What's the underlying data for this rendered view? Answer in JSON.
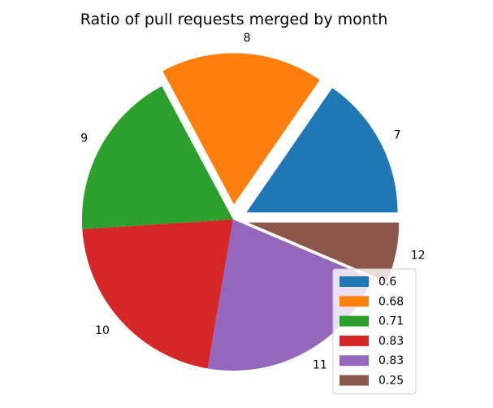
{
  "chart_data": {
    "type": "pie",
    "title": "Ratio of pull requests merged by month",
    "start_angle_deg": 0,
    "direction": "counterclockwise",
    "slices": [
      {
        "label": "7",
        "value": 0.6,
        "legend": "0.6",
        "color": "#1f77b4",
        "explode": 0.1
      },
      {
        "label": "8",
        "value": 0.68,
        "legend": "0.68",
        "color": "#ff7f0e",
        "explode": 0.1
      },
      {
        "label": "9",
        "value": 0.71,
        "legend": "0.71",
        "color": "#2ca02c",
        "explode": 0.0
      },
      {
        "label": "10",
        "value": 0.83,
        "legend": "0.83",
        "color": "#d62728",
        "explode": 0.0
      },
      {
        "label": "11",
        "value": 0.83,
        "legend": "0.83",
        "color": "#9467bd",
        "explode": 0.0
      },
      {
        "label": "12",
        "value": 0.25,
        "legend": "0.25",
        "color": "#8c564b",
        "explode": 0.1
      }
    ],
    "legend_position": "lower-right"
  }
}
